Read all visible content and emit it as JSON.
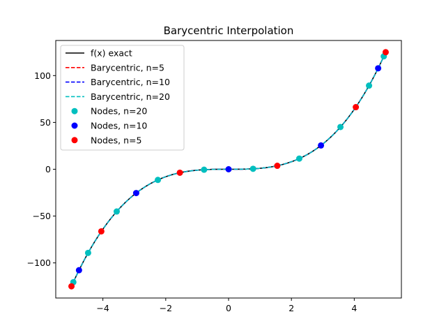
{
  "chart_data": {
    "type": "line",
    "title": "Barycentric Interpolation",
    "xlabel": "",
    "ylabel": "",
    "xlim": [
      -5.5,
      5.5
    ],
    "ylim": [
      -137.5,
      137.5
    ],
    "xticks": [
      -4,
      -2,
      0,
      2,
      4
    ],
    "yticks": [
      -100,
      -50,
      0,
      50,
      100
    ],
    "xtick_labels": [
      "−4",
      "−2",
      "0",
      "2",
      "4"
    ],
    "ytick_labels": [
      "−100",
      "−50",
      "0",
      "50",
      "100"
    ],
    "grid": false,
    "legend_position": "upper-left",
    "function": "x^3",
    "x_range": [
      -5,
      5
    ],
    "series": [
      {
        "name": "f(x) exact",
        "kind": "line",
        "color": "#000000",
        "dash": "solid"
      },
      {
        "name": "Barycentric, n=5",
        "kind": "line",
        "color": "#ff0000",
        "dash": "dashed"
      },
      {
        "name": "Barycentric, n=10",
        "kind": "line",
        "color": "#0000ff",
        "dash": "dashed"
      },
      {
        "name": "Barycentric, n=20",
        "kind": "line",
        "color": "#00bfbf",
        "dash": "dashed"
      },
      {
        "name": "Nodes, n=20",
        "kind": "points",
        "color": "#00bfbf",
        "x": [
          -4.94,
          -4.47,
          -3.56,
          -2.25,
          -0.78,
          0.78,
          2.25,
          3.56,
          4.47,
          4.94
        ],
        "y": [
          -120.6,
          -89.3,
          -45.1,
          -11.4,
          -0.5,
          0.5,
          11.4,
          45.1,
          89.3,
          120.6
        ]
      },
      {
        "name": "Nodes, n=10",
        "kind": "points",
        "color": "#0000ff",
        "x": [
          -4.76,
          -2.94,
          0,
          2.94,
          4.76
        ],
        "y": [
          -107.8,
          -25.4,
          0,
          25.4,
          107.8
        ]
      },
      {
        "name": "Nodes, n=5",
        "kind": "points",
        "color": "#ff0000",
        "x": [
          -5.0,
          -4.05,
          -1.55,
          1.55,
          4.05,
          5.0
        ],
        "y": [
          -125,
          -66.3,
          -3.7,
          3.7,
          66.3,
          125
        ]
      }
    ]
  }
}
